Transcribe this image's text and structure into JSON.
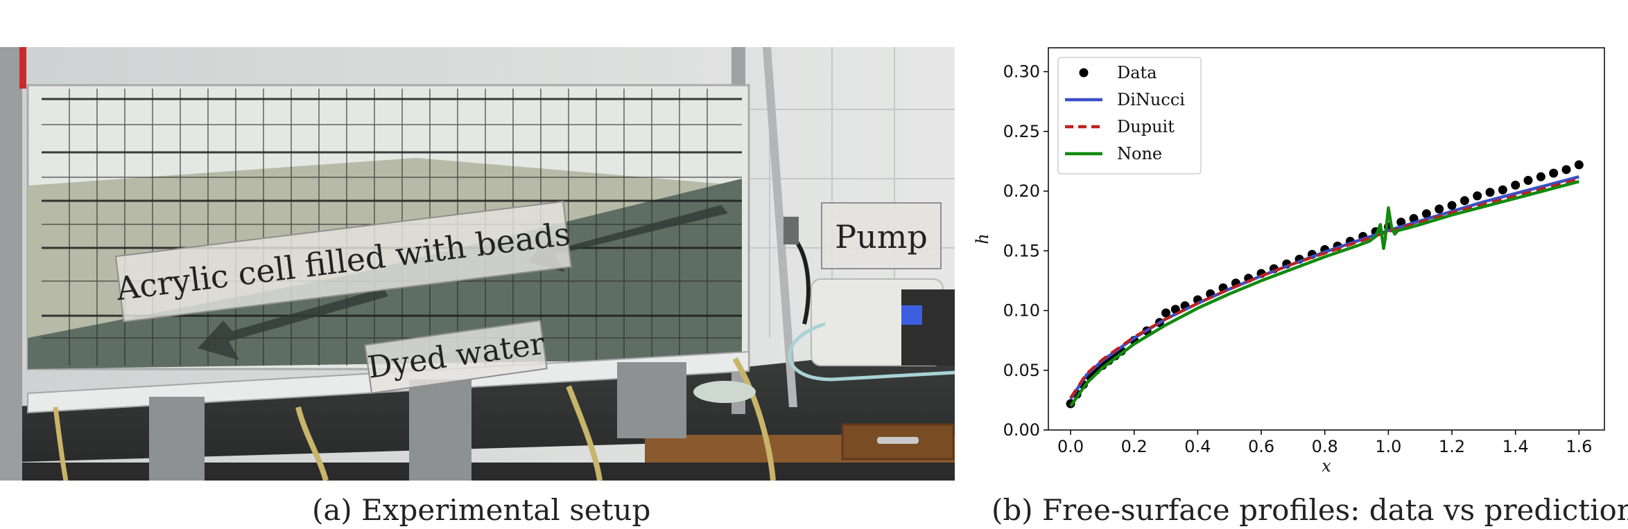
{
  "photo": {
    "labels": {
      "cell": "Acrylic cell filled with beads",
      "water": "Dyed water",
      "pump": "Pump"
    }
  },
  "captions": {
    "a": "(a) Experimental setup",
    "b": "(b) Free-surface profiles: data vs prediction"
  },
  "chart_data": {
    "type": "line",
    "xlabel": "x",
    "ylabel": "h",
    "xlim": [
      -0.07,
      1.68
    ],
    "ylim": [
      0.0,
      0.32
    ],
    "xticks": [
      "0.0",
      "0.2",
      "0.4",
      "0.6",
      "0.8",
      "1.0",
      "1.2",
      "1.4",
      "1.6"
    ],
    "yticks": [
      "0.00",
      "0.05",
      "0.10",
      "0.15",
      "0.20",
      "0.25",
      "0.30"
    ],
    "grid": false,
    "legend_position": "upper-left",
    "series": [
      {
        "name": "Data",
        "style": "scatter",
        "color": "#000000",
        "x": [
          0.0,
          0.02,
          0.04,
          0.06,
          0.08,
          0.1,
          0.12,
          0.14,
          0.16,
          0.2,
          0.24,
          0.28,
          0.3,
          0.33,
          0.36,
          0.4,
          0.44,
          0.48,
          0.52,
          0.56,
          0.6,
          0.64,
          0.68,
          0.72,
          0.76,
          0.8,
          0.84,
          0.88,
          0.92,
          0.96,
          1.0,
          1.04,
          1.08,
          1.12,
          1.16,
          1.2,
          1.24,
          1.28,
          1.32,
          1.36,
          1.4,
          1.44,
          1.48,
          1.52,
          1.56,
          1.6
        ],
        "values": [
          0.022,
          0.03,
          0.038,
          0.045,
          0.05,
          0.054,
          0.058,
          0.062,
          0.066,
          0.075,
          0.083,
          0.09,
          0.098,
          0.101,
          0.104,
          0.109,
          0.114,
          0.119,
          0.123,
          0.127,
          0.131,
          0.135,
          0.139,
          0.143,
          0.147,
          0.151,
          0.154,
          0.158,
          0.162,
          0.166,
          0.17,
          0.174,
          0.177,
          0.181,
          0.185,
          0.188,
          0.192,
          0.196,
          0.199,
          0.201,
          0.205,
          0.209,
          0.212,
          0.215,
          0.218,
          0.222
        ]
      },
      {
        "name": "DiNucci",
        "style": "solid",
        "color": "#3a4fc7",
        "x": [
          0.0,
          0.05,
          0.1,
          0.2,
          0.3,
          0.4,
          0.5,
          0.6,
          0.7,
          0.8,
          0.9,
          1.0,
          1.1,
          1.2,
          1.3,
          1.4,
          1.5,
          1.6
        ],
        "values": [
          0.026,
          0.046,
          0.058,
          0.077,
          0.093,
          0.106,
          0.118,
          0.129,
          0.139,
          0.149,
          0.158,
          0.167,
          0.175,
          0.183,
          0.191,
          0.198,
          0.205,
          0.212
        ]
      },
      {
        "name": "Dupuit",
        "style": "dashed",
        "color": "#c0201a",
        "x": [
          0.0,
          0.05,
          0.1,
          0.2,
          0.3,
          0.4,
          0.5,
          0.6,
          0.7,
          0.8,
          0.9,
          1.0,
          1.1,
          1.2,
          1.3,
          1.4,
          1.5,
          1.6
        ],
        "values": [
          0.027,
          0.047,
          0.059,
          0.078,
          0.093,
          0.106,
          0.118,
          0.129,
          0.139,
          0.148,
          0.157,
          0.166,
          0.174,
          0.182,
          0.189,
          0.196,
          0.203,
          0.21
        ]
      },
      {
        "name": "None",
        "style": "solid",
        "color": "#118a0e",
        "x": [
          0.0,
          0.05,
          0.1,
          0.2,
          0.3,
          0.4,
          0.5,
          0.6,
          0.7,
          0.8,
          0.9,
          0.94,
          0.96,
          0.975,
          0.985,
          0.99,
          1.0,
          1.01,
          1.02,
          1.03,
          1.06,
          1.1,
          1.2,
          1.3,
          1.4,
          1.5,
          1.6
        ],
        "values": [
          0.02,
          0.039,
          0.052,
          0.072,
          0.088,
          0.102,
          0.114,
          0.125,
          0.135,
          0.145,
          0.154,
          0.158,
          0.162,
          0.172,
          0.152,
          0.16,
          0.186,
          0.17,
          0.164,
          0.167,
          0.169,
          0.172,
          0.18,
          0.187,
          0.194,
          0.201,
          0.208
        ]
      }
    ]
  }
}
